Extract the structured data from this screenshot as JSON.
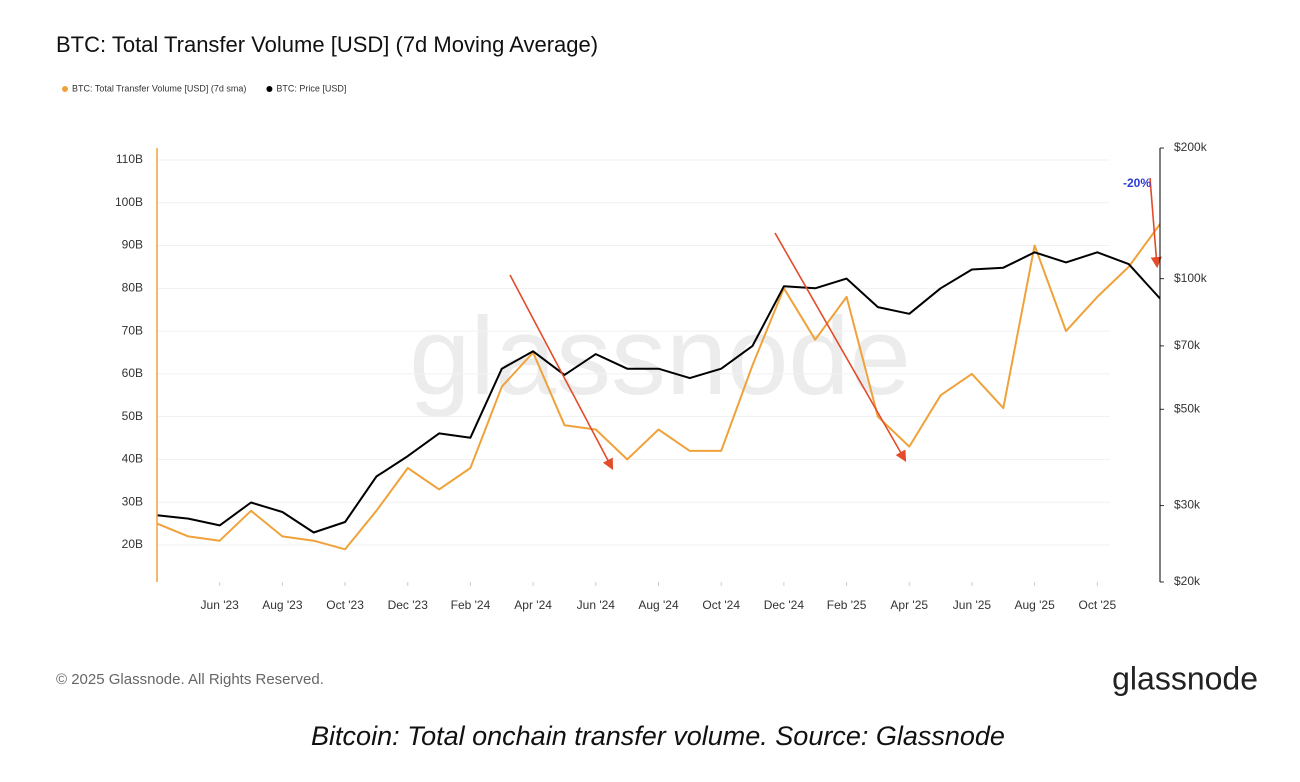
{
  "chart_data": {
    "type": "line",
    "title": "BTC: Total Transfer Volume [USD] (7d Moving Average)",
    "watermark": "glassnode",
    "footer": "© 2025 Glassnode. All Rights Reserved.",
    "logo": "glassnode",
    "caption": "Bitcoin: Total onchain transfer volume. Source: Glassnode",
    "annotations": [
      "-20%"
    ],
    "x": [
      "2023-04",
      "2023-05",
      "2023-06",
      "2023-07",
      "2023-08",
      "2023-09",
      "2023-10",
      "2023-11",
      "2023-12",
      "2024-01",
      "2024-02",
      "2024-03",
      "2024-04",
      "2024-05",
      "2024-06",
      "2024-07",
      "2024-08",
      "2024-09",
      "2024-10",
      "2024-11",
      "2024-12",
      "2025-01",
      "2025-02",
      "2025-03",
      "2025-04",
      "2025-05",
      "2025-06",
      "2025-07",
      "2025-08",
      "2025-09",
      "2025-10",
      "2025-11",
      "2025-12"
    ],
    "xlim": [
      "2023-04",
      "2025-12"
    ],
    "xticks": [
      {
        "value": "2023-06",
        "label": "Jun '23"
      },
      {
        "value": "2023-08",
        "label": "Aug '23"
      },
      {
        "value": "2023-10",
        "label": "Oct '23"
      },
      {
        "value": "2023-12",
        "label": "Dec '23"
      },
      {
        "value": "2024-02",
        "label": "Feb '24"
      },
      {
        "value": "2024-04",
        "label": "Apr '24"
      },
      {
        "value": "2024-06",
        "label": "Jun '24"
      },
      {
        "value": "2024-08",
        "label": "Aug '24"
      },
      {
        "value": "2024-10",
        "label": "Oct '24"
      },
      {
        "value": "2024-12",
        "label": "Dec '24"
      },
      {
        "value": "2025-02",
        "label": "Feb '25"
      },
      {
        "value": "2025-04",
        "label": "Apr '25"
      },
      {
        "value": "2025-06",
        "label": "Jun '25"
      },
      {
        "value": "2025-08",
        "label": "Aug '25"
      },
      {
        "value": "2025-10",
        "label": "Oct '25"
      }
    ],
    "ylim": [
      11.35,
      112.8
    ],
    "yticks": [
      {
        "value": 20,
        "label": "20B"
      },
      {
        "value": 30,
        "label": "30B"
      },
      {
        "value": 40,
        "label": "40B"
      },
      {
        "value": 50,
        "label": "50B"
      },
      {
        "value": 60,
        "label": "60B"
      },
      {
        "value": 70,
        "label": "70B"
      },
      {
        "value": 80,
        "label": "80B"
      },
      {
        "value": 90,
        "label": "90B"
      },
      {
        "value": 100,
        "label": "100B"
      },
      {
        "value": 110,
        "label": "110B"
      }
    ],
    "y2lim": [
      20000,
      200000
    ],
    "y2ticks": [
      {
        "value": 20000,
        "label": "$20k"
      },
      {
        "value": 30000,
        "label": "$30k"
      },
      {
        "value": 50000,
        "label": "$50k"
      },
      {
        "value": 70000,
        "label": "$70k"
      },
      {
        "value": 100000,
        "label": "$100k"
      },
      {
        "value": 200000,
        "label": "$200k"
      }
    ],
    "y2log": true,
    "grid": true,
    "series": [
      {
        "name": "BTC: Total Transfer Volume [USD] (7d sma)",
        "color": "#f0a23a",
        "values": [
          25,
          22,
          21,
          28,
          22,
          21,
          19,
          28,
          38,
          33,
          38,
          57,
          65,
          48,
          47,
          40,
          47,
          42,
          42,
          62,
          80,
          68,
          78,
          50,
          43,
          55,
          60,
          52,
          90,
          70,
          78,
          85,
          95
        ]
      },
      {
        "name": "BTC: Price [USD]",
        "color": "#000000",
        "axis": "y2",
        "values": [
          28500,
          28000,
          27000,
          30500,
          29000,
          26000,
          27500,
          35000,
          39000,
          44000,
          43000,
          62000,
          68000,
          60000,
          67000,
          62000,
          62000,
          59000,
          62000,
          70000,
          96000,
          95000,
          100000,
          86000,
          83000,
          95000,
          105000,
          106000,
          115000,
          109000,
          115000,
          108000,
          90000
        ]
      }
    ]
  }
}
